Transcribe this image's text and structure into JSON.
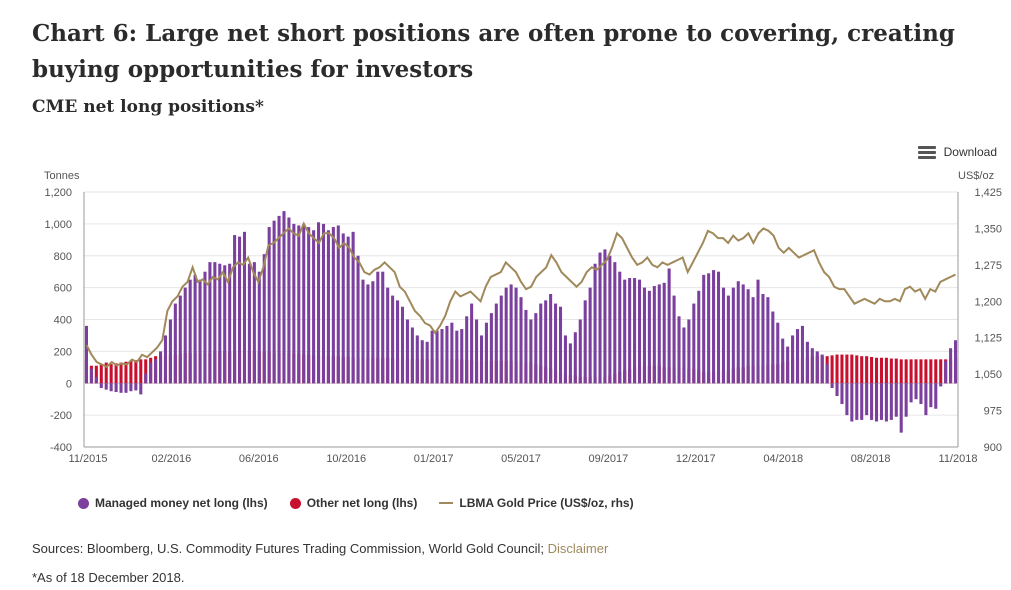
{
  "title": "Chart 6: Large net short positions are often prone to covering, creating buying opportunities for investors",
  "subtitle": "CME net long positions*",
  "download_label": "Download",
  "legend": {
    "managed": "Managed money net long (lhs)",
    "other": "Other net long (lhs)",
    "gold": "LBMA Gold Price (US$/oz, rhs)"
  },
  "sources_text": "Sources: Bloomberg, U.S. Commodity Futures Trading Commission, World Gold Council;",
  "disclaimer_label": "Disclaimer",
  "note": "*As of 18 December 2018.",
  "colors": {
    "managed": "#7b3f9e",
    "other": "#c8102e",
    "gold": "#a0895a",
    "axis": "#999999",
    "grid": "#e6e6e6"
  },
  "chart_data": {
    "type": "bar",
    "left_axis": {
      "unit": "Tonnes",
      "ylim": [
        -400,
        1200
      ],
      "ticks": [
        -400,
        -200,
        0,
        200,
        400,
        600,
        800,
        "1,000",
        "1,200"
      ]
    },
    "right_axis": {
      "unit": "US$/oz",
      "ylim": [
        900,
        1425
      ],
      "ticks": [
        900,
        975,
        "1,050",
        "1,125",
        "1,200",
        "1,275",
        "1,350",
        "1,425"
      ]
    },
    "x_tick_labels": [
      "11/2015",
      "02/2016",
      "06/2016",
      "10/2016",
      "01/2017",
      "05/2017",
      "09/2017",
      "12/2017",
      "04/2018",
      "08/2018",
      "11/2018"
    ],
    "grid": true,
    "legend_position": "bottom",
    "series": [
      {
        "name": "Managed money net long (lhs)",
        "kind": "bar",
        "axis": "left",
        "values": [
          360,
          90,
          40,
          -30,
          -40,
          -50,
          -55,
          -60,
          -60,
          -50,
          -45,
          -70,
          60,
          130,
          150,
          200,
          300,
          400,
          500,
          550,
          600,
          650,
          680,
          650,
          700,
          760,
          760,
          750,
          740,
          750,
          930,
          920,
          950,
          750,
          760,
          700,
          810,
          980,
          1020,
          1050,
          1080,
          1040,
          1000,
          990,
          1000,
          980,
          960,
          1010,
          1000,
          960,
          980,
          990,
          940,
          920,
          950,
          800,
          650,
          620,
          640,
          700,
          700,
          600,
          550,
          520,
          480,
          400,
          350,
          300,
          270,
          260,
          330,
          330,
          340,
          360,
          380,
          330,
          340,
          420,
          500,
          400,
          300,
          380,
          440,
          500,
          550,
          600,
          620,
          600,
          540,
          460,
          400,
          440,
          500,
          520,
          560,
          500,
          480,
          300,
          250,
          320,
          400,
          520,
          600,
          750,
          820,
          840,
          800,
          760,
          700,
          650,
          660,
          660,
          650,
          600,
          580,
          610,
          620,
          630,
          720,
          550,
          420,
          350,
          400,
          500,
          580,
          680,
          690,
          710,
          700,
          600,
          550,
          600,
          640,
          620,
          590,
          540,
          650,
          560,
          540,
          450,
          380,
          280,
          230,
          300,
          340,
          360,
          260,
          220,
          200,
          180,
          120,
          -30,
          -80,
          -130,
          -200,
          -240,
          -230,
          -230,
          -200,
          -230,
          -240,
          -230,
          -240,
          -230,
          -210,
          -310,
          -210,
          -120,
          -100,
          -130,
          -200,
          -150,
          -160,
          -20,
          140,
          220,
          270
        ]
      },
      {
        "name": "Other net long (lhs)",
        "kind": "bar",
        "axis": "left",
        "values": [
          140,
          110,
          110,
          120,
          130,
          120,
          125,
          130,
          135,
          140,
          145,
          150,
          150,
          160,
          170,
          170,
          170,
          180,
          180,
          180,
          190,
          190,
          190,
          190,
          190,
          190,
          200,
          200,
          200,
          195,
          195,
          200,
          200,
          200,
          200,
          200,
          195,
          195,
          190,
          190,
          190,
          190,
          185,
          185,
          180,
          180,
          175,
          175,
          175,
          170,
          170,
          170,
          165,
          165,
          160,
          160,
          160,
          160,
          160,
          160,
          160,
          160,
          155,
          155,
          150,
          150,
          150,
          150,
          150,
          150,
          150,
          150,
          150,
          150,
          150,
          150,
          150,
          145,
          145,
          140,
          140,
          140,
          140,
          140,
          140,
          140,
          140,
          135,
          135,
          130,
          130,
          120,
          110,
          100,
          90,
          80,
          70,
          60,
          50,
          50,
          40,
          40,
          40,
          40,
          40,
          40,
          50,
          60,
          70,
          80,
          90,
          100,
          100,
          110,
          110,
          110,
          110,
          100,
          100,
          100,
          100,
          100,
          90,
          90,
          80,
          70,
          70,
          70,
          70,
          80,
          80,
          90,
          100,
          100,
          110,
          110,
          110,
          110,
          110,
          120,
          120,
          130,
          140,
          150,
          160,
          160,
          160,
          170,
          170,
          170,
          170,
          175,
          180,
          180,
          180,
          180,
          175,
          170,
          170,
          165,
          160,
          160,
          160,
          155,
          155,
          150,
          150,
          150,
          150,
          150,
          150,
          150,
          150,
          150,
          150,
          150,
          150,
          150,
          150,
          150,
          160,
          170,
          190,
          200
        ]
      },
      {
        "name": "LBMA Gold Price (US$/oz, rhs)",
        "kind": "line",
        "axis": "right",
        "values": [
          1110,
          1090,
          1075,
          1070,
          1065,
          1075,
          1068,
          1072,
          1070,
          1080,
          1075,
          1090,
          1085,
          1095,
          1105,
          1120,
          1180,
          1200,
          1210,
          1230,
          1240,
          1270,
          1240,
          1245,
          1235,
          1250,
          1245,
          1260,
          1240,
          1270,
          1280,
          1275,
          1290,
          1260,
          1240,
          1270,
          1315,
          1320,
          1330,
          1340,
          1350,
          1340,
          1335,
          1360,
          1340,
          1330,
          1320,
          1340,
          1340,
          1330,
          1310,
          1320,
          1310,
          1290,
          1280,
          1260,
          1255,
          1265,
          1270,
          1280,
          1270,
          1260,
          1230,
          1220,
          1200,
          1180,
          1170,
          1155,
          1150,
          1135,
          1150,
          1170,
          1200,
          1220,
          1210,
          1215,
          1220,
          1210,
          1200,
          1230,
          1250,
          1255,
          1260,
          1280,
          1270,
          1260,
          1240,
          1225,
          1230,
          1250,
          1260,
          1270,
          1295,
          1280,
          1260,
          1250,
          1240,
          1230,
          1240,
          1260,
          1270,
          1265,
          1275,
          1285,
          1310,
          1340,
          1330,
          1310,
          1290,
          1275,
          1280,
          1290,
          1275,
          1270,
          1280,
          1275,
          1280,
          1285,
          1290,
          1260,
          1280,
          1300,
          1320,
          1345,
          1340,
          1330,
          1330,
          1320,
          1335,
          1325,
          1330,
          1340,
          1320,
          1340,
          1350,
          1345,
          1335,
          1310,
          1300,
          1310,
          1300,
          1290,
          1295,
          1300,
          1305,
          1280,
          1260,
          1250,
          1230,
          1225,
          1225,
          1210,
          1195,
          1200,
          1205,
          1200,
          1195,
          1205,
          1200,
          1200,
          1205,
          1200,
          1225,
          1230,
          1220,
          1225,
          1205,
          1225,
          1220,
          1240,
          1245,
          1250,
          1255
        ]
      }
    ]
  }
}
